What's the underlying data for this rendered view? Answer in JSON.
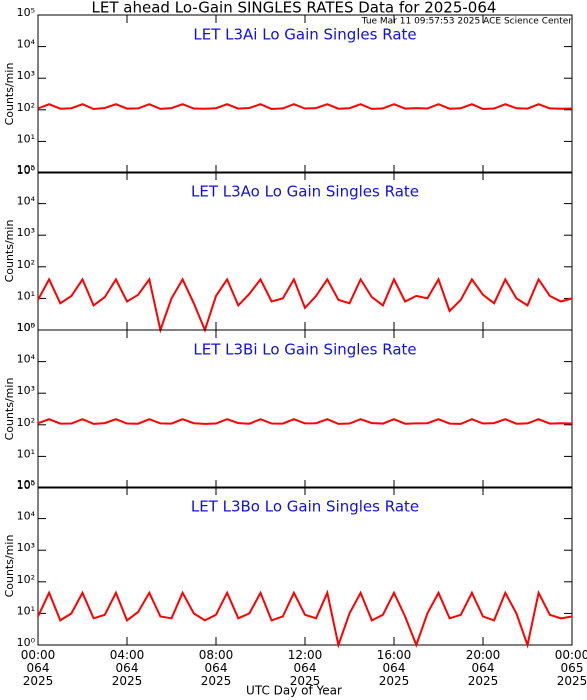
{
  "title": "LET ahead Lo-Gain SINGLES RATES Data for 2025-064",
  "subtitle": "Tue Mar 11 09:57:53 2025 ACE Science Center",
  "xlabel": "UTC Day of Year",
  "chart_data": [
    {
      "type": "line",
      "title": "LET L3Ai Lo Gain Singles Rate",
      "ylabel": "Counts/min",
      "log_scale": true,
      "ylim": [
        1,
        100000
      ],
      "yticks": [
        {
          "value": 1,
          "label": "10⁰"
        },
        {
          "value": 10,
          "label": "10¹"
        },
        {
          "value": 100,
          "label": "10²"
        },
        {
          "value": 1000,
          "label": "10³"
        },
        {
          "value": 10000,
          "label": "10⁴"
        },
        {
          "value": 100000,
          "label": "10⁵"
        }
      ],
      "xlim": [
        0,
        24
      ],
      "xticks": [
        0,
        4,
        8,
        12,
        16,
        20,
        24
      ],
      "x": [
        0,
        0.5,
        1,
        1.5,
        2,
        2.5,
        3,
        3.5,
        4,
        4.5,
        5,
        5.5,
        6,
        6.5,
        7,
        7.5,
        8,
        8.5,
        9,
        9.5,
        10,
        10.5,
        11,
        11.5,
        12,
        12.5,
        13,
        13.5,
        14,
        14.5,
        15,
        15.5,
        16,
        16.5,
        17,
        17.5,
        18,
        18.5,
        19,
        19.5,
        20,
        20.5,
        21,
        21.5,
        22,
        22.5,
        23,
        23.5,
        24
      ],
      "series": [
        {
          "name": "L3Ai",
          "color": "#ff0000",
          "values": [
            110,
            150,
            108,
            112,
            150,
            106,
            114,
            150,
            109,
            111,
            150,
            107,
            113,
            150,
            110,
            108,
            112,
            150,
            109,
            114,
            150,
            106,
            111,
            150,
            110,
            113,
            150,
            108,
            112,
            150,
            107,
            111,
            150,
            109,
            113,
            110,
            150,
            108,
            112,
            150,
            106,
            110,
            150,
            112,
            109,
            150,
            111,
            108,
            110
          ]
        }
      ]
    },
    {
      "type": "line",
      "title": "LET L3Ao Lo Gain Singles Rate",
      "ylabel": "Counts/min",
      "log_scale": true,
      "ylim": [
        1,
        100000
      ],
      "yticks": [
        {
          "value": 1,
          "label": "10⁰"
        },
        {
          "value": 10,
          "label": "10¹"
        },
        {
          "value": 100,
          "label": "10²"
        },
        {
          "value": 1000,
          "label": "10³"
        },
        {
          "value": 10000,
          "label": "10⁴"
        },
        {
          "value": 100000,
          "label": "10⁵"
        }
      ],
      "xlim": [
        0,
        24
      ],
      "xticks": [
        0,
        4,
        8,
        12,
        16,
        20,
        24
      ],
      "x": [
        0,
        0.5,
        1,
        1.5,
        2,
        2.5,
        3,
        3.5,
        4,
        4.5,
        5,
        5.5,
        6,
        6.5,
        7,
        7.5,
        8,
        8.5,
        9,
        9.5,
        10,
        10.5,
        11,
        11.5,
        12,
        12.5,
        13,
        13.5,
        14,
        14.5,
        15,
        15.5,
        16,
        16.5,
        17,
        17.5,
        18,
        18.5,
        19,
        19.5,
        20,
        20.5,
        21,
        21.5,
        22,
        22.5,
        23,
        23.5,
        24
      ],
      "series": [
        {
          "name": "L3Ao",
          "color": "#ff0000",
          "values": [
            9,
            40,
            7,
            12,
            40,
            6,
            11,
            40,
            8,
            13,
            40,
            1,
            10,
            40,
            7,
            1,
            12,
            40,
            6,
            14,
            40,
            8,
            10,
            40,
            5,
            12,
            40,
            9,
            7,
            40,
            11,
            6,
            40,
            8,
            12,
            10,
            40,
            4,
            9,
            40,
            13,
            7,
            40,
            10,
            6,
            40,
            12,
            8,
            10
          ]
        }
      ]
    },
    {
      "type": "line",
      "title": "LET L3Bi Lo Gain Singles Rate",
      "ylabel": "Counts/min",
      "log_scale": true,
      "ylim": [
        1,
        100000
      ],
      "yticks": [
        {
          "value": 1,
          "label": "10⁰"
        },
        {
          "value": 10,
          "label": "10¹"
        },
        {
          "value": 100,
          "label": "10²"
        },
        {
          "value": 1000,
          "label": "10³"
        },
        {
          "value": 10000,
          "label": "10⁴"
        },
        {
          "value": 100000,
          "label": "10⁵"
        }
      ],
      "xlim": [
        0,
        24
      ],
      "xticks": [
        0,
        4,
        8,
        12,
        16,
        20,
        24
      ],
      "x": [
        0,
        0.5,
        1,
        1.5,
        2,
        2.5,
        3,
        3.5,
        4,
        4.5,
        5,
        5.5,
        6,
        6.5,
        7,
        7.5,
        8,
        8.5,
        9,
        9.5,
        10,
        10.5,
        11,
        11.5,
        12,
        12.5,
        13,
        13.5,
        14,
        14.5,
        15,
        15.5,
        16,
        16.5,
        17,
        17.5,
        18,
        18.5,
        19,
        19.5,
        20,
        20.5,
        21,
        21.5,
        22,
        22.5,
        23,
        23.5,
        24
      ],
      "series": [
        {
          "name": "L3Bi",
          "color": "#ff0000",
          "values": [
            112,
            150,
            109,
            110,
            150,
            107,
            113,
            150,
            110,
            108,
            150,
            111,
            109,
            150,
            112,
            107,
            110,
            150,
            113,
            108,
            150,
            110,
            109,
            150,
            111,
            112,
            150,
            107,
            110,
            150,
            113,
            109,
            150,
            108,
            111,
            112,
            150,
            109,
            107,
            150,
            110,
            113,
            150,
            108,
            111,
            150,
            109,
            112,
            110
          ]
        }
      ]
    },
    {
      "type": "line",
      "title": "LET L3Bo Lo Gain Singles Rate",
      "ylabel": "Counts/min",
      "log_scale": true,
      "ylim": [
        1,
        100000
      ],
      "yticks": [
        {
          "value": 1,
          "label": "10⁰"
        },
        {
          "value": 10,
          "label": "10¹"
        },
        {
          "value": 100,
          "label": "10²"
        },
        {
          "value": 1000,
          "label": "10³"
        },
        {
          "value": 10000,
          "label": "10⁴"
        },
        {
          "value": 100000,
          "label": "10⁵"
        }
      ],
      "xlim": [
        0,
        24
      ],
      "xticks": [
        {
          "value": 0,
          "label": "00:00\n064\n2025"
        },
        {
          "value": 4,
          "label": "04:00\n064\n2025"
        },
        {
          "value": 8,
          "label": "08:00\n064\n2025"
        },
        {
          "value": 12,
          "label": "12:00\n064\n2025"
        },
        {
          "value": 16,
          "label": "16:00\n064\n2025"
        },
        {
          "value": 20,
          "label": "20:00\n064\n2025"
        },
        {
          "value": 24,
          "label": "00:00\n065\n2025"
        }
      ],
      "x": [
        0,
        0.5,
        1,
        1.5,
        2,
        2.5,
        3,
        3.5,
        4,
        4.5,
        5,
        5.5,
        6,
        6.5,
        7,
        7.5,
        8,
        8.5,
        9,
        9.5,
        10,
        10.5,
        11,
        11.5,
        12,
        12.5,
        13,
        13.5,
        14,
        14.5,
        15,
        15.5,
        16,
        16.5,
        17,
        17.5,
        18,
        18.5,
        19,
        19.5,
        20,
        20.5,
        21,
        21.5,
        22,
        22.5,
        23,
        23.5,
        24
      ],
      "series": [
        {
          "name": "L3Bo",
          "color": "#ff0000",
          "values": [
            8,
            45,
            6,
            10,
            45,
            7,
            9,
            45,
            6,
            11,
            45,
            8,
            7,
            45,
            10,
            6,
            9,
            45,
            7,
            10,
            45,
            6,
            8,
            45,
            9,
            7,
            45,
            1,
            10,
            45,
            6,
            9,
            45,
            8,
            1,
            10,
            45,
            7,
            9,
            45,
            8,
            6,
            45,
            10,
            1,
            45,
            9,
            7,
            8
          ]
        }
      ]
    }
  ]
}
